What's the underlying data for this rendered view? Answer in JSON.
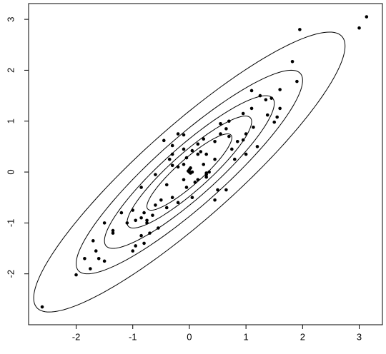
{
  "chart_data": {
    "type": "scatter",
    "color": "#000000",
    "x": [
      3.13,
      3.0,
      1.95,
      1.82,
      1.9,
      1.6,
      1.45,
      1.6,
      1.35,
      1.25,
      1.1,
      0.95,
      1.38,
      1.55,
      1.5,
      1.13,
      1.0,
      0.95,
      0.7,
      0.65,
      0.55,
      0.55,
      0.7,
      0.45,
      0.25,
      0.15,
      -0.1,
      -0.2,
      -0.45,
      -0.3,
      -0.1,
      0.05,
      0.2,
      0.3,
      -0.3,
      -0.35,
      -0.3,
      -0.2,
      -0.1,
      0.0,
      0.0,
      0.02,
      -0.02,
      0.05,
      0.3,
      0.35,
      0.3,
      0.15,
      0.1,
      -0.05,
      -0.4,
      -0.6,
      -0.85,
      -0.5,
      -0.3,
      -0.2,
      -0.4,
      -0.6,
      -0.65,
      -0.75,
      -0.85,
      -0.95,
      -1.0,
      -0.8,
      -0.55,
      -0.7,
      -0.85,
      -0.95,
      -1.0,
      -0.8,
      -0.75,
      -1.1,
      -1.2,
      -1.35,
      -1.35,
      -1.5,
      -1.65,
      -1.7,
      -1.75,
      -1.85,
      -1.6,
      -1.5,
      -2.0,
      -2.6,
      0.5,
      0.65,
      0.45,
      0.8,
      0.75,
      1.0,
      1.2,
      0.85,
      0.05,
      -0.1,
      0.25,
      0.15,
      1.1,
      0.45,
      0.3,
      -0.05,
      0.02
    ],
    "values": [
      3.05,
      2.83,
      2.8,
      2.17,
      1.78,
      1.62,
      1.45,
      1.25,
      1.42,
      1.5,
      1.6,
      1.15,
      1.12,
      1.08,
      0.98,
      0.88,
      0.75,
      0.63,
      1.0,
      0.85,
      0.95,
      0.75,
      0.7,
      0.6,
      0.65,
      0.55,
      0.73,
      0.75,
      0.62,
      0.52,
      0.45,
      0.42,
      0.4,
      0.35,
      0.35,
      0.25,
      0.13,
      0.1,
      0.15,
      0.05,
      0.0,
      -0.02,
      0.02,
      0.0,
      -0.02,
      0.0,
      -0.1,
      -0.15,
      -0.2,
      -0.3,
      -0.25,
      -0.05,
      -0.3,
      -0.55,
      -0.5,
      -0.6,
      -0.7,
      -0.65,
      -0.85,
      -0.95,
      -0.9,
      -0.95,
      -0.75,
      -0.8,
      -1.1,
      -1.2,
      -1.25,
      -1.45,
      -1.55,
      -1.4,
      -1.0,
      -1.0,
      -0.8,
      -1.15,
      -1.2,
      -1.0,
      -1.55,
      -1.35,
      -1.9,
      -1.7,
      -1.7,
      -1.75,
      -2.02,
      -2.65,
      -0.35,
      -0.35,
      -0.55,
      0.25,
      0.45,
      0.35,
      0.5,
      0.6,
      -0.5,
      -0.15,
      0.15,
      0.35,
      1.25,
      0.25,
      -0.05,
      0.28,
      0.08
    ],
    "correlation": 0.9,
    "contour_levels": [
      0.75,
      1.1,
      1.5,
      2.0,
      2.75
    ],
    "xlim": [
      -2.84,
      3.41
    ],
    "ylim": [
      -3.0,
      3.31
    ],
    "xticks": [
      -2,
      -1,
      0,
      1,
      2,
      3
    ],
    "yticks": [
      -2,
      -1,
      0,
      1,
      2,
      3
    ]
  }
}
